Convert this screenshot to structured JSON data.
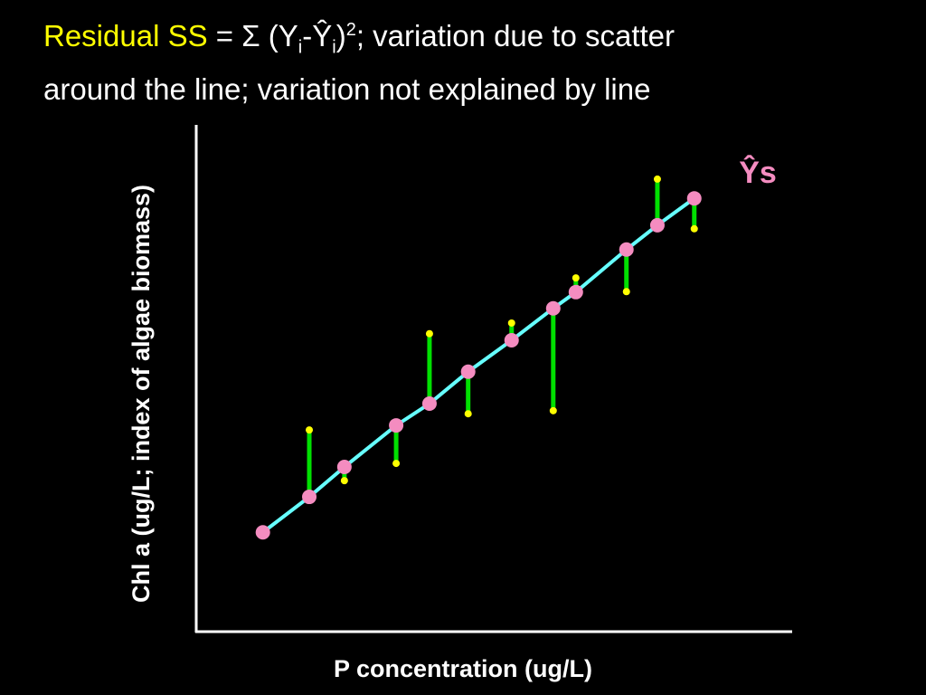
{
  "chart_data": {
    "type": "scatter",
    "title_parts": [
      "Residual SS",
      " = Σ (Y",
      "i",
      "-Ŷ",
      "i",
      ")",
      "2",
      "; variation due to scatter",
      "around the line; variation not explained by line"
    ],
    "x_label": "P concentration (ug/L)",
    "y_label": "Chl a (ug/L; index of algae biomass)",
    "annotation": "Ŷs",
    "xlim": [
      0,
      100
    ],
    "ylim": [
      0,
      100
    ],
    "x": [
      11.2,
      19.0,
      24.9,
      33.6,
      39.2,
      45.7,
      53.0,
      60.0,
      63.8,
      72.3,
      77.5,
      83.7
    ],
    "series": [
      {
        "color": "#ffff00",
        "values": [
          19.1,
          39.8,
          29.8,
          33.2,
          58.8,
          43.0,
          60.9,
          43.6,
          69.8,
          67.1,
          89.3,
          79.5
        ]
      },
      {
        "color": "#f48cc0",
        "values": [
          19.6,
          26.6,
          32.5,
          40.7,
          45.0,
          51.3,
          57.5,
          63.8,
          67.0,
          75.4,
          80.2,
          85.5
        ]
      }
    ],
    "line_color": "#66ffff",
    "residual_color": "#00e000"
  }
}
